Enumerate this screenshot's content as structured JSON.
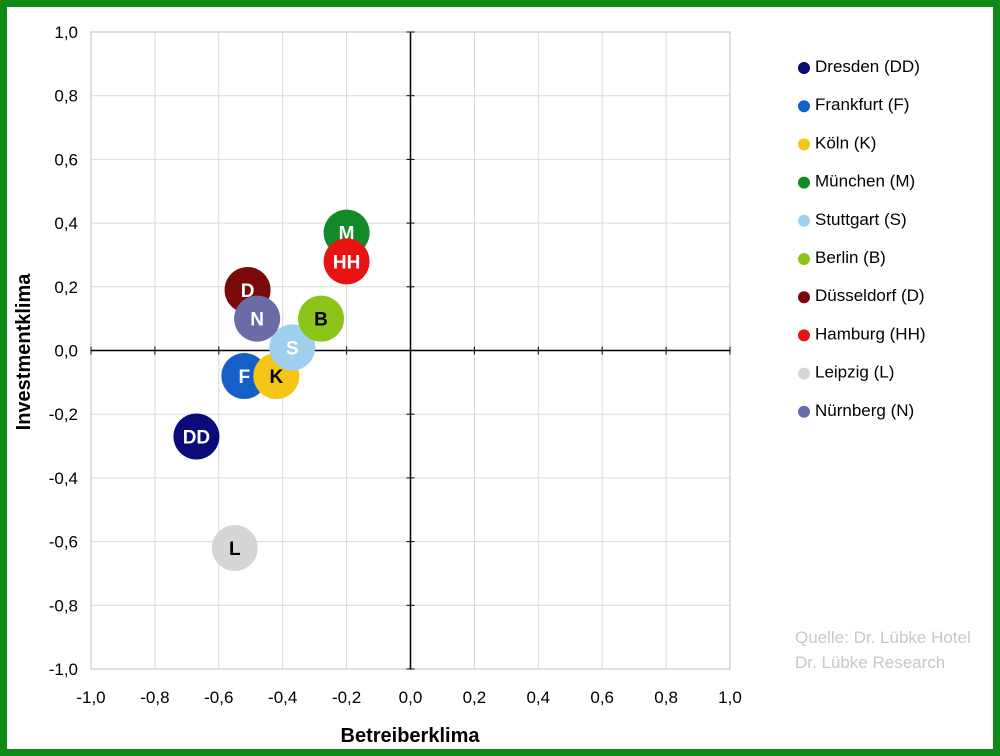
{
  "chart_data": {
    "type": "scatter",
    "title": "",
    "xlabel": "Betreiberklima",
    "ylabel": "Investmentklima",
    "xlim": [
      -1.0,
      1.0
    ],
    "ylim": [
      -1.0,
      1.0
    ],
    "x_ticks": [
      "-1,0",
      "-0,8",
      "-0,6",
      "-0,4",
      "-0,2",
      "0,0",
      "0,2",
      "0,4",
      "0,6",
      "0,8",
      "1,0"
    ],
    "y_ticks": [
      "1,0",
      "0,8",
      "0,6",
      "0,4",
      "0,2",
      "0,0",
      "-0,2",
      "-0,4",
      "-0,6",
      "-0,8",
      "-1,0"
    ],
    "grid": true,
    "legend_position": "right",
    "series": [
      {
        "name": "Dresden (DD)",
        "label": "DD",
        "x": -0.67,
        "y": -0.27,
        "color": "#0a0a78",
        "text_color": "#ffffff"
      },
      {
        "name": "Frankfurt (F)",
        "label": "F",
        "x": -0.52,
        "y": -0.08,
        "color": "#1560c8",
        "text_color": "#ffffff"
      },
      {
        "name": "Köln (K)",
        "label": "K",
        "x": -0.42,
        "y": -0.08,
        "color": "#f5c518",
        "text_color": "#000000"
      },
      {
        "name": "München (M)",
        "label": "M",
        "x": -0.2,
        "y": 0.37,
        "color": "#138a2a",
        "text_color": "#ffffff"
      },
      {
        "name": "Stuttgart (S)",
        "label": "S",
        "x": -0.37,
        "y": 0.01,
        "color": "#9fd0f0",
        "text_color": "#ffffff"
      },
      {
        "name": "Berlin (B)",
        "label": "B",
        "x": -0.28,
        "y": 0.1,
        "color": "#8cc41a",
        "text_color": "#000000"
      },
      {
        "name": "Düsseldorf (D)",
        "label": "D",
        "x": -0.51,
        "y": 0.19,
        "color": "#7a0a0a",
        "text_color": "#ffffff"
      },
      {
        "name": "Hamburg (HH)",
        "label": "HH",
        "x": -0.2,
        "y": 0.28,
        "color": "#e81414",
        "text_color": "#ffffff"
      },
      {
        "name": "Leipzig (L)",
        "label": "L",
        "x": -0.55,
        "y": -0.62,
        "color": "#d6d6d6",
        "text_color": "#000000"
      },
      {
        "name": "Nürnberg (N)",
        "label": "N",
        "x": -0.48,
        "y": 0.1,
        "color": "#6b6ba8",
        "text_color": "#ffffff"
      }
    ],
    "bubble_order": [
      "DD",
      "L",
      "F",
      "K",
      "S",
      "B",
      "D",
      "N",
      "M",
      "HH"
    ],
    "annotations": [
      "Quelle: Dr. Lübke Hotel",
      "Dr. Lübke Research"
    ]
  },
  "source": {
    "line1": "Quelle: Dr. Lübke Hotel",
    "line2": "Dr. Lübke Research"
  }
}
